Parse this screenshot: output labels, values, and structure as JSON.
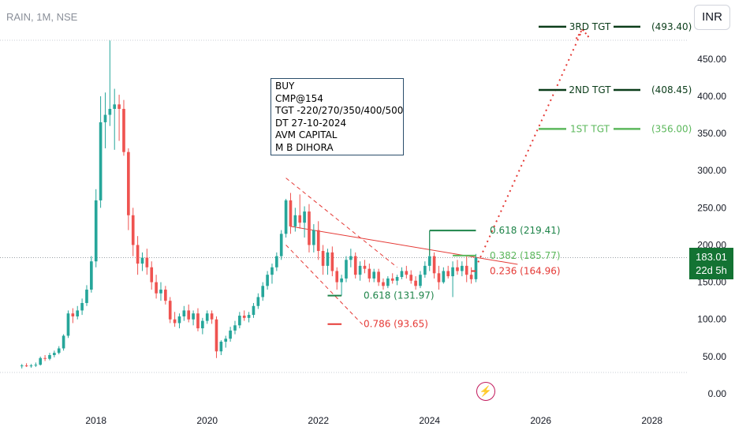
{
  "header": {
    "symbol": "RAIN, 1M, NSE",
    "currency": "INR"
  },
  "note": {
    "lines": [
      "BUY",
      "CMP@154",
      "TGT -220/270/350/400/500",
      "DT 27-10-2024",
      "AVM CAPITAL",
      "M B DIHORA"
    ]
  },
  "last_price": {
    "value": "183.01",
    "countdown": "22d 5h",
    "color": "#137333"
  },
  "colors": {
    "up": "#26a69a",
    "down": "#ef5350",
    "target_dark": "#0b3d1a",
    "target_light": "#5cb85c",
    "fib_red": "#e53935",
    "fib_green": "#1e8449"
  },
  "icons": {
    "event": "lightning-icon"
  },
  "chart_data": {
    "type": "candlestick",
    "x_axis": {
      "ticks": [
        "2018",
        "2020",
        "2022",
        "2024",
        "2026",
        "2028"
      ],
      "range": [
        "2016-09",
        "2028-09"
      ]
    },
    "y_axis": {
      "ticks": [
        "0.00",
        "50.00",
        "100.00",
        "150.00",
        "200.00",
        "250.00",
        "300.00",
        "350.00",
        "400.00",
        "450.00"
      ],
      "ylim": [
        0,
        520
      ]
    },
    "series": [
      {
        "date": "2016-09",
        "o": 37,
        "h": 40,
        "l": 34,
        "c": 38
      },
      {
        "date": "2016-10",
        "o": 38,
        "h": 41,
        "l": 36,
        "c": 37
      },
      {
        "date": "2016-11",
        "o": 37,
        "h": 40,
        "l": 35,
        "c": 38
      },
      {
        "date": "2016-12",
        "o": 38,
        "h": 42,
        "l": 36,
        "c": 39
      },
      {
        "date": "2017-01",
        "o": 39,
        "h": 50,
        "l": 38,
        "c": 48
      },
      {
        "date": "2017-02",
        "o": 48,
        "h": 52,
        "l": 44,
        "c": 47
      },
      {
        "date": "2017-03",
        "o": 47,
        "h": 55,
        "l": 45,
        "c": 52
      },
      {
        "date": "2017-04",
        "o": 52,
        "h": 58,
        "l": 49,
        "c": 55
      },
      {
        "date": "2017-05",
        "o": 55,
        "h": 64,
        "l": 53,
        "c": 61
      },
      {
        "date": "2017-06",
        "o": 61,
        "h": 80,
        "l": 58,
        "c": 78
      },
      {
        "date": "2017-07",
        "o": 78,
        "h": 112,
        "l": 75,
        "c": 108
      },
      {
        "date": "2017-08",
        "o": 108,
        "h": 115,
        "l": 95,
        "c": 104
      },
      {
        "date": "2017-09",
        "o": 104,
        "h": 118,
        "l": 100,
        "c": 112
      },
      {
        "date": "2017-10",
        "o": 112,
        "h": 128,
        "l": 106,
        "c": 122
      },
      {
        "date": "2017-11",
        "o": 122,
        "h": 146,
        "l": 118,
        "c": 140
      },
      {
        "date": "2017-12",
        "o": 140,
        "h": 185,
        "l": 136,
        "c": 178
      },
      {
        "date": "2018-01",
        "o": 178,
        "h": 275,
        "l": 170,
        "c": 260
      },
      {
        "date": "2018-02",
        "o": 260,
        "h": 400,
        "l": 250,
        "c": 365
      },
      {
        "date": "2018-03",
        "o": 365,
        "h": 405,
        "l": 330,
        "c": 375
      },
      {
        "date": "2018-04",
        "o": 375,
        "h": 475,
        "l": 360,
        "c": 383
      },
      {
        "date": "2018-05",
        "o": 383,
        "h": 410,
        "l": 328,
        "c": 389
      },
      {
        "date": "2018-06",
        "o": 389,
        "h": 402,
        "l": 340,
        "c": 383
      },
      {
        "date": "2018-07",
        "o": 383,
        "h": 395,
        "l": 320,
        "c": 325
      },
      {
        "date": "2018-08",
        "o": 325,
        "h": 330,
        "l": 220,
        "c": 240
      },
      {
        "date": "2018-09",
        "o": 240,
        "h": 250,
        "l": 185,
        "c": 200
      },
      {
        "date": "2018-10",
        "o": 200,
        "h": 212,
        "l": 160,
        "c": 175
      },
      {
        "date": "2018-11",
        "o": 175,
        "h": 190,
        "l": 165,
        "c": 183
      },
      {
        "date": "2018-12",
        "o": 183,
        "h": 195,
        "l": 160,
        "c": 170
      },
      {
        "date": "2019-01",
        "o": 170,
        "h": 178,
        "l": 140,
        "c": 150
      },
      {
        "date": "2019-02",
        "o": 150,
        "h": 160,
        "l": 128,
        "c": 135
      },
      {
        "date": "2019-03",
        "o": 135,
        "h": 150,
        "l": 125,
        "c": 140
      },
      {
        "date": "2019-04",
        "o": 140,
        "h": 145,
        "l": 120,
        "c": 125
      },
      {
        "date": "2019-05",
        "o": 125,
        "h": 130,
        "l": 95,
        "c": 100
      },
      {
        "date": "2019-06",
        "o": 100,
        "h": 110,
        "l": 90,
        "c": 95
      },
      {
        "date": "2019-07",
        "o": 95,
        "h": 108,
        "l": 88,
        "c": 104
      },
      {
        "date": "2019-08",
        "o": 104,
        "h": 118,
        "l": 98,
        "c": 112
      },
      {
        "date": "2019-09",
        "o": 112,
        "h": 120,
        "l": 96,
        "c": 100
      },
      {
        "date": "2019-10",
        "o": 100,
        "h": 112,
        "l": 92,
        "c": 108
      },
      {
        "date": "2019-11",
        "o": 108,
        "h": 115,
        "l": 84,
        "c": 88
      },
      {
        "date": "2019-12",
        "o": 88,
        "h": 102,
        "l": 80,
        "c": 98
      },
      {
        "date": "2020-01",
        "o": 98,
        "h": 112,
        "l": 94,
        "c": 108
      },
      {
        "date": "2020-02",
        "o": 108,
        "h": 112,
        "l": 94,
        "c": 100
      },
      {
        "date": "2020-03",
        "o": 100,
        "h": 104,
        "l": 48,
        "c": 57
      },
      {
        "date": "2020-04",
        "o": 57,
        "h": 72,
        "l": 52,
        "c": 70
      },
      {
        "date": "2020-05",
        "o": 70,
        "h": 78,
        "l": 62,
        "c": 74
      },
      {
        "date": "2020-06",
        "o": 74,
        "h": 90,
        "l": 70,
        "c": 85
      },
      {
        "date": "2020-07",
        "o": 85,
        "h": 98,
        "l": 80,
        "c": 92
      },
      {
        "date": "2020-08",
        "o": 92,
        "h": 110,
        "l": 88,
        "c": 105
      },
      {
        "date": "2020-09",
        "o": 105,
        "h": 112,
        "l": 98,
        "c": 102
      },
      {
        "date": "2020-10",
        "o": 102,
        "h": 110,
        "l": 96,
        "c": 106
      },
      {
        "date": "2020-11",
        "o": 106,
        "h": 122,
        "l": 102,
        "c": 118
      },
      {
        "date": "2020-12",
        "o": 118,
        "h": 135,
        "l": 114,
        "c": 130
      },
      {
        "date": "2021-01",
        "o": 130,
        "h": 150,
        "l": 125,
        "c": 145
      },
      {
        "date": "2021-02",
        "o": 145,
        "h": 165,
        "l": 140,
        "c": 160
      },
      {
        "date": "2021-03",
        "o": 160,
        "h": 175,
        "l": 148,
        "c": 170
      },
      {
        "date": "2021-04",
        "o": 170,
        "h": 190,
        "l": 165,
        "c": 185
      },
      {
        "date": "2021-05",
        "o": 185,
        "h": 220,
        "l": 180,
        "c": 215
      },
      {
        "date": "2021-06",
        "o": 215,
        "h": 262,
        "l": 210,
        "c": 260
      },
      {
        "date": "2021-07",
        "o": 260,
        "h": 270,
        "l": 215,
        "c": 225
      },
      {
        "date": "2021-08",
        "o": 225,
        "h": 250,
        "l": 218,
        "c": 240
      },
      {
        "date": "2021-09",
        "o": 240,
        "h": 268,
        "l": 222,
        "c": 230
      },
      {
        "date": "2021-10",
        "o": 230,
        "h": 252,
        "l": 210,
        "c": 245
      },
      {
        "date": "2021-11",
        "o": 245,
        "h": 255,
        "l": 190,
        "c": 200
      },
      {
        "date": "2021-12",
        "o": 200,
        "h": 228,
        "l": 190,
        "c": 220
      },
      {
        "date": "2022-01",
        "o": 220,
        "h": 232,
        "l": 180,
        "c": 192
      },
      {
        "date": "2022-02",
        "o": 192,
        "h": 200,
        "l": 160,
        "c": 172
      },
      {
        "date": "2022-03",
        "o": 172,
        "h": 195,
        "l": 160,
        "c": 190
      },
      {
        "date": "2022-04",
        "o": 190,
        "h": 198,
        "l": 158,
        "c": 165
      },
      {
        "date": "2022-05",
        "o": 165,
        "h": 170,
        "l": 140,
        "c": 150
      },
      {
        "date": "2022-06",
        "o": 150,
        "h": 160,
        "l": 132,
        "c": 155
      },
      {
        "date": "2022-07",
        "o": 155,
        "h": 185,
        "l": 150,
        "c": 180
      },
      {
        "date": "2022-08",
        "o": 180,
        "h": 195,
        "l": 170,
        "c": 185
      },
      {
        "date": "2022-09",
        "o": 185,
        "h": 190,
        "l": 155,
        "c": 160
      },
      {
        "date": "2022-10",
        "o": 160,
        "h": 178,
        "l": 152,
        "c": 172
      },
      {
        "date": "2022-11",
        "o": 172,
        "h": 180,
        "l": 162,
        "c": 168
      },
      {
        "date": "2022-12",
        "o": 168,
        "h": 175,
        "l": 150,
        "c": 155
      },
      {
        "date": "2023-01",
        "o": 155,
        "h": 168,
        "l": 150,
        "c": 164
      },
      {
        "date": "2023-02",
        "o": 164,
        "h": 168,
        "l": 145,
        "c": 150
      },
      {
        "date": "2023-03",
        "o": 150,
        "h": 155,
        "l": 140,
        "c": 145
      },
      {
        "date": "2023-04",
        "o": 145,
        "h": 158,
        "l": 142,
        "c": 155
      },
      {
        "date": "2023-05",
        "o": 155,
        "h": 162,
        "l": 148,
        "c": 152
      },
      {
        "date": "2023-06",
        "o": 152,
        "h": 160,
        "l": 146,
        "c": 157
      },
      {
        "date": "2023-07",
        "o": 157,
        "h": 170,
        "l": 154,
        "c": 165
      },
      {
        "date": "2023-08",
        "o": 165,
        "h": 172,
        "l": 155,
        "c": 160
      },
      {
        "date": "2023-09",
        "o": 160,
        "h": 166,
        "l": 148,
        "c": 152
      },
      {
        "date": "2023-10",
        "o": 152,
        "h": 158,
        "l": 140,
        "c": 145
      },
      {
        "date": "2023-11",
        "o": 145,
        "h": 165,
        "l": 142,
        "c": 160
      },
      {
        "date": "2023-12",
        "o": 160,
        "h": 178,
        "l": 156,
        "c": 172
      },
      {
        "date": "2024-01",
        "o": 172,
        "h": 219,
        "l": 165,
        "c": 185
      },
      {
        "date": "2024-02",
        "o": 185,
        "h": 190,
        "l": 155,
        "c": 162
      },
      {
        "date": "2024-03",
        "o": 162,
        "h": 172,
        "l": 140,
        "c": 150
      },
      {
        "date": "2024-04",
        "o": 150,
        "h": 170,
        "l": 148,
        "c": 165
      },
      {
        "date": "2024-05",
        "o": 165,
        "h": 172,
        "l": 155,
        "c": 158
      },
      {
        "date": "2024-06",
        "o": 158,
        "h": 178,
        "l": 130,
        "c": 170
      },
      {
        "date": "2024-07",
        "o": 170,
        "h": 180,
        "l": 160,
        "c": 165
      },
      {
        "date": "2024-08",
        "o": 165,
        "h": 178,
        "l": 158,
        "c": 172
      },
      {
        "date": "2024-09",
        "o": 172,
        "h": 186,
        "l": 150,
        "c": 160
      },
      {
        "date": "2024-10",
        "o": 160,
        "h": 170,
        "l": 148,
        "c": 154
      },
      {
        "date": "2024-11",
        "o": 154,
        "h": 188,
        "l": 150,
        "c": 183
      }
    ],
    "fib_levels": [
      {
        "label": "0.618 (219.41)",
        "price": 219.41,
        "color": "#1e8449"
      },
      {
        "label": "0.382 (185.77)",
        "price": 185.77,
        "color": "#5cb85c"
      },
      {
        "label": "0.236 (164.96)",
        "price": 164.96,
        "color": "#e53935"
      },
      {
        "label": "0.618 (131.97)",
        "price": 131.97,
        "color": "#1e8449"
      },
      {
        "label": "0.786 (93.65)",
        "price": 93.65,
        "color": "#e53935"
      }
    ],
    "targets": [
      {
        "label": "3RD TGT",
        "price": 493.4,
        "value_label": "(493.40)",
        "color": "#0b3d1a"
      },
      {
        "label": "2ND TGT",
        "price": 408.45,
        "value_label": "(408.45)",
        "color": "#0b3d1a"
      },
      {
        "label": "1ST TGT",
        "price": 356.0,
        "value_label": "(356.00)",
        "color": "#5cb85c"
      }
    ],
    "trendlines": [
      {
        "name": "resistance",
        "style": "solid",
        "color": "#e53935",
        "from": [
          "2021-07",
          225
        ],
        "to": [
          "2025-08",
          174
        ]
      },
      {
        "name": "channel-upper",
        "style": "dashed",
        "color": "#e53935",
        "from": [
          "2021-06",
          290
        ],
        "to": [
          "2023-06",
          170
        ]
      },
      {
        "name": "channel-lower",
        "style": "dashed",
        "color": "#e53935",
        "from": [
          "2021-06",
          200
        ],
        "to": [
          "2022-11",
          90
        ]
      },
      {
        "name": "projection",
        "style": "dotted",
        "color": "#e53935",
        "from": [
          "2024-11",
          170
        ],
        "to": [
          "2026-10",
          490
        ]
      }
    ],
    "last_close": 183.01
  }
}
